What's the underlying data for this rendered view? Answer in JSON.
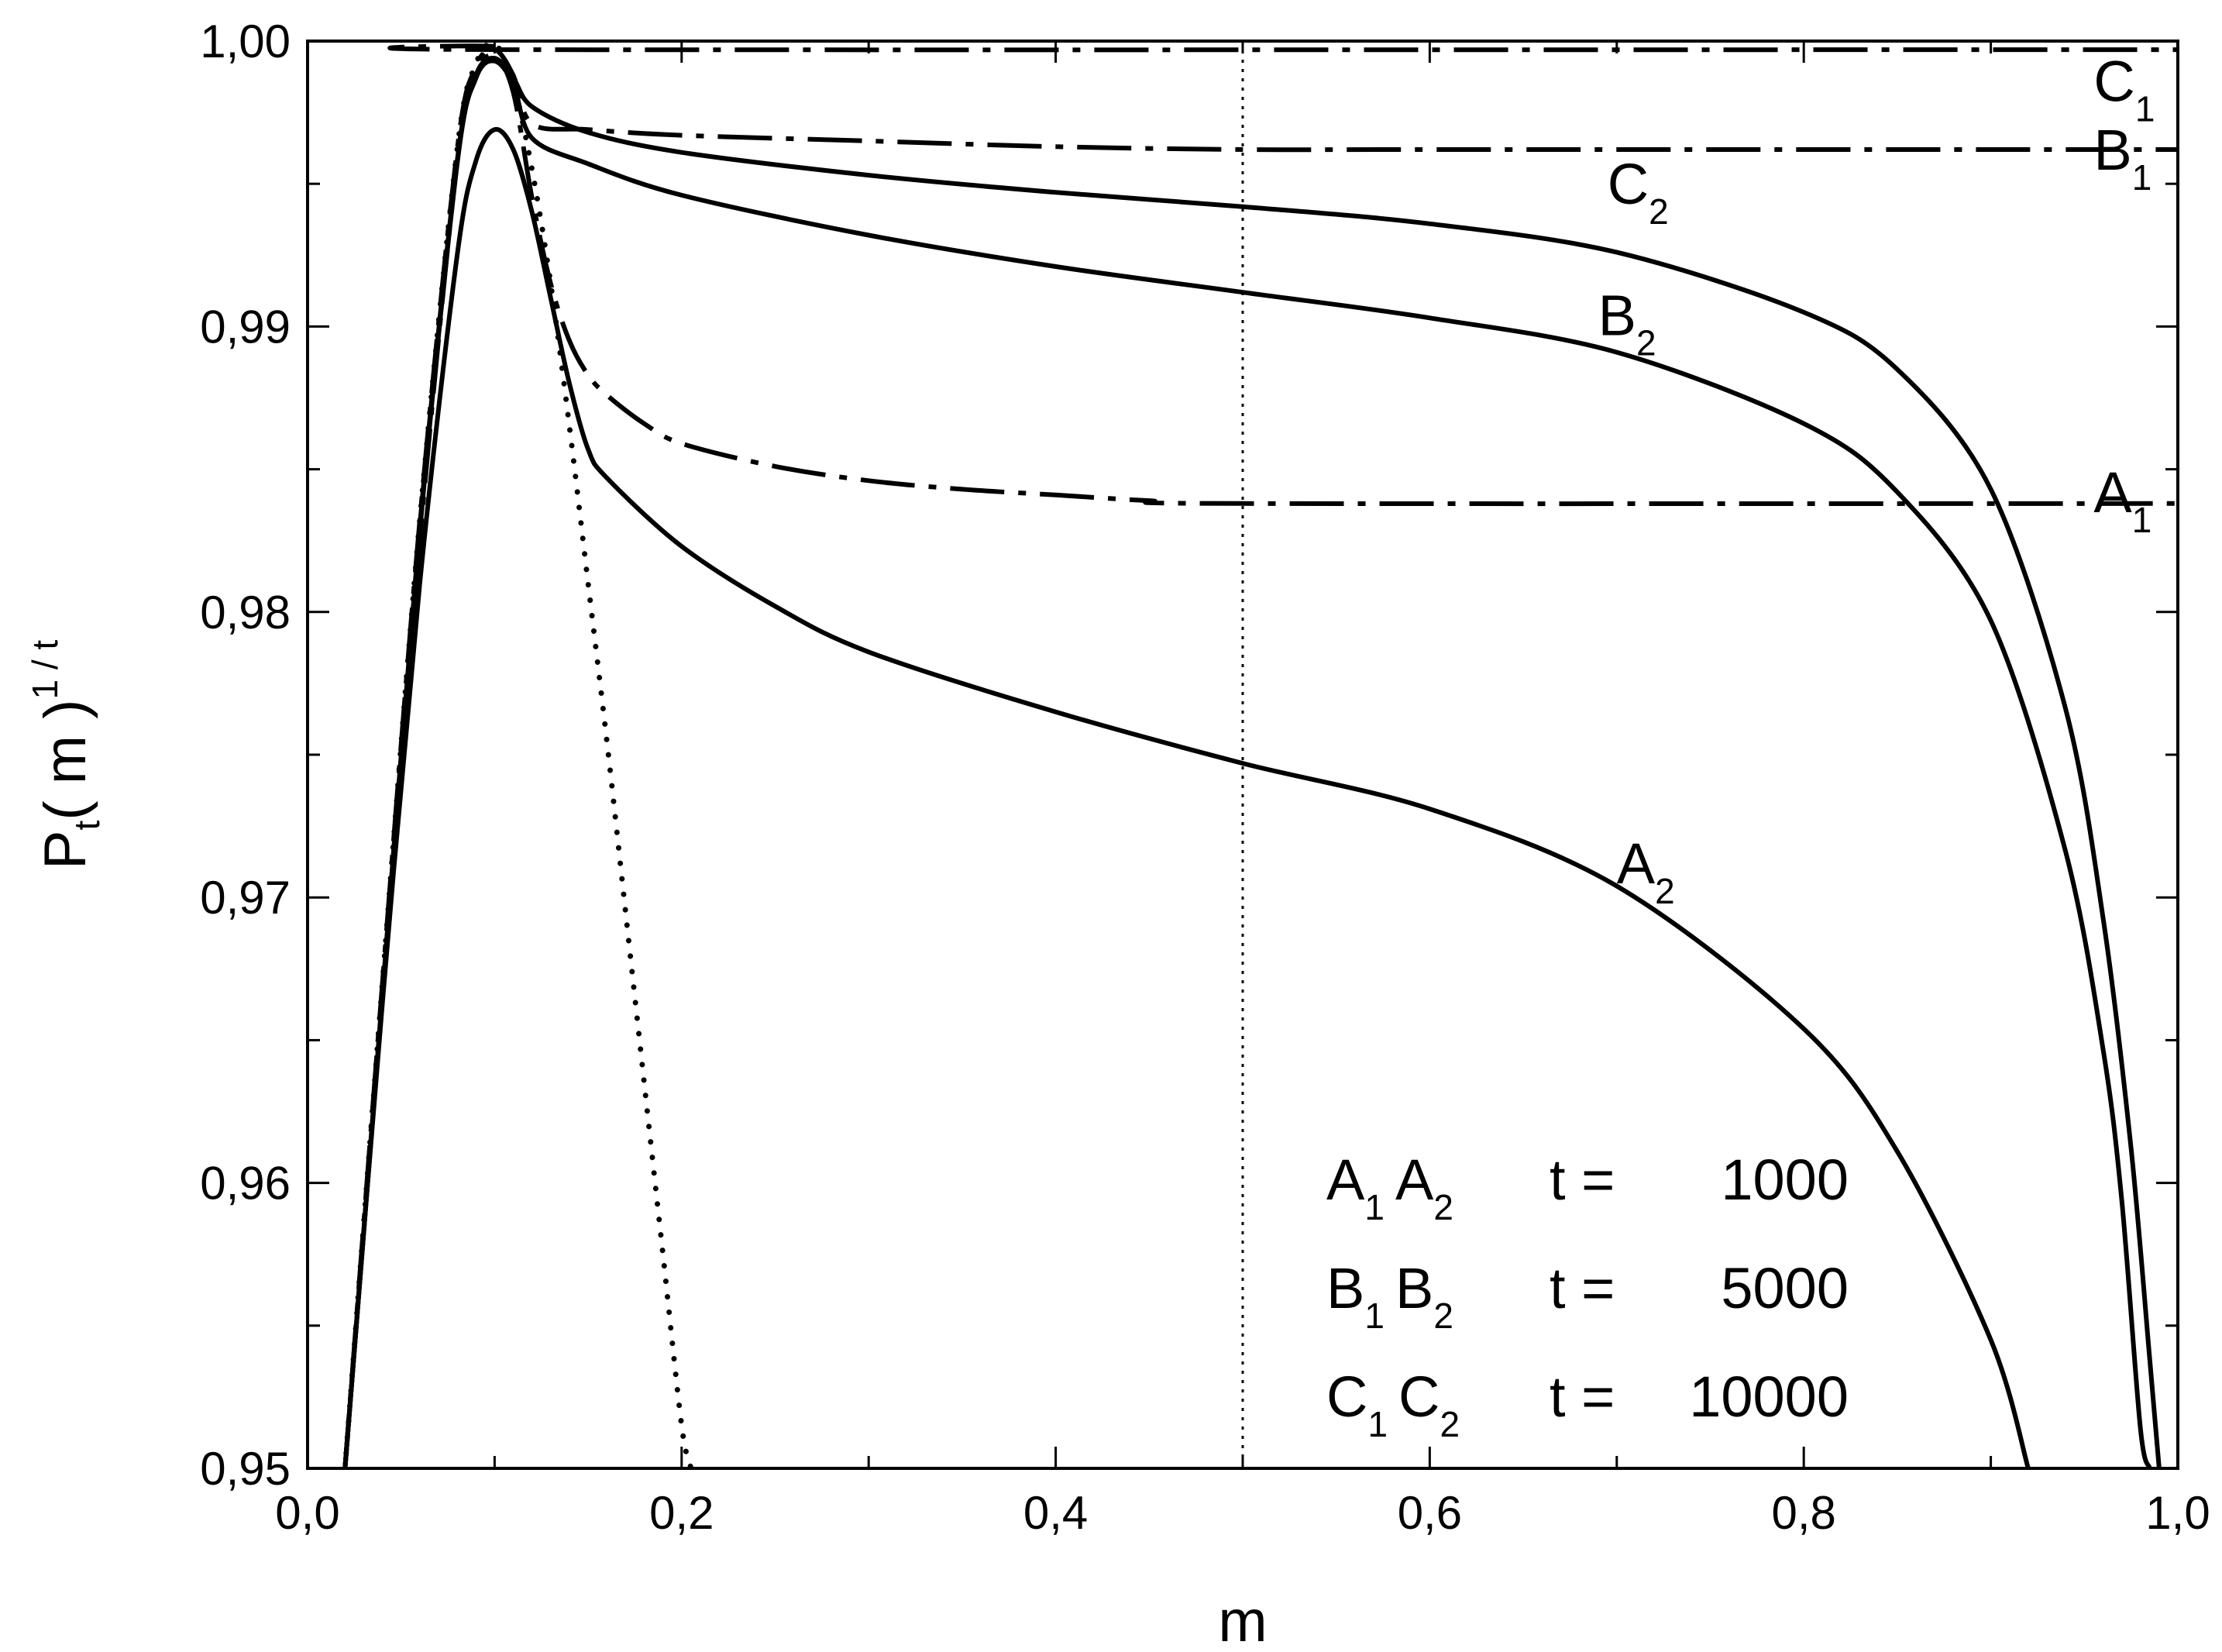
{
  "chart_data": {
    "type": "line",
    "xlabel": "m",
    "ylabel": {
      "base": "P",
      "sub": "t",
      "mid": "( m )",
      "sup": "1 / t"
    },
    "xlim": [
      0.0,
      1.0
    ],
    "ylim": [
      0.95,
      1.0
    ],
    "x_ticks": [
      0.0,
      0.2,
      0.4,
      0.6,
      0.8,
      1.0
    ],
    "x_tick_labels": [
      "0,0",
      "0,2",
      "0,4",
      "0,6",
      "0,8",
      "1,0"
    ],
    "y_ticks": [
      0.95,
      0.96,
      0.97,
      0.98,
      0.99,
      1.0
    ],
    "y_tick_labels": [
      "0,95",
      "0,96",
      "0,97",
      "0,98",
      "0,99",
      "1,00"
    ],
    "x_minor_step": 0.1,
    "y_minor_step": 0.005,
    "grid": false,
    "reference_lines": [
      {
        "orientation": "vertical",
        "x": 0.5,
        "style": "dotted"
      }
    ],
    "series": [
      {
        "name": "A1",
        "label_main": "A",
        "label_sub": "1",
        "style": "dashdot",
        "label_x": 0.955,
        "label_y": 0.9835,
        "x": [
          0.02,
          0.04,
          0.06,
          0.08,
          0.09,
          0.1,
          0.11,
          0.12,
          0.13,
          0.14,
          0.15,
          0.16,
          0.18,
          0.2,
          0.25,
          0.3,
          0.35,
          0.4,
          0.45,
          0.5,
          1.0
        ],
        "y": [
          0.95,
          0.9665,
          0.9825,
          0.9958,
          0.9988,
          0.9995,
          0.9982,
          0.9945,
          0.9915,
          0.9895,
          0.9883,
          0.9876,
          0.9866,
          0.9859,
          0.9851,
          0.9846,
          0.9843,
          0.9841,
          0.9839,
          0.9838,
          0.9838
        ]
      },
      {
        "name": "A2",
        "label_main": "A",
        "label_sub": "2",
        "style": "solid",
        "label_x": 0.7,
        "label_y": 0.9705,
        "x": [
          0.02,
          0.04,
          0.06,
          0.08,
          0.09,
          0.1,
          0.11,
          0.12,
          0.13,
          0.14,
          0.15,
          0.16,
          0.2,
          0.25,
          0.3,
          0.4,
          0.5,
          0.6,
          0.7,
          0.8,
          0.85,
          0.9,
          0.92
        ],
        "y": [
          0.95,
          0.9663,
          0.981,
          0.9925,
          0.9958,
          0.9969,
          0.9962,
          0.994,
          0.991,
          0.988,
          0.9857,
          0.9847,
          0.9823,
          0.9802,
          0.9786,
          0.9765,
          0.9747,
          0.9731,
          0.9704,
          0.9654,
          0.9611,
          0.9545,
          0.95
        ]
      },
      {
        "name": "B1",
        "label_main": "B",
        "label_sub": "1",
        "style": "dashdot",
        "label_x": 0.955,
        "label_y": 0.9955,
        "x": [
          0.02,
          0.04,
          0.06,
          0.08,
          0.09,
          0.1,
          0.11,
          0.12,
          0.15,
          0.2,
          0.3,
          0.4,
          0.5,
          0.6,
          1.0
        ],
        "y": [
          0.95,
          0.9668,
          0.983,
          0.996,
          0.999,
          0.9997,
          0.9988,
          0.9971,
          0.9969,
          0.9967,
          0.9965,
          0.9963,
          0.9962,
          0.9962,
          0.9962
        ]
      },
      {
        "name": "B2",
        "label_main": "B",
        "label_sub": "2",
        "style": "solid",
        "label_x": 0.69,
        "label_y": 0.9897,
        "x": [
          0.02,
          0.04,
          0.06,
          0.08,
          0.09,
          0.1,
          0.11,
          0.12,
          0.15,
          0.2,
          0.3,
          0.4,
          0.5,
          0.6,
          0.7,
          0.8,
          0.85,
          0.9,
          0.94,
          0.96,
          0.97,
          0.98,
          0.985
        ],
        "y": [
          0.95,
          0.9665,
          0.9828,
          0.9957,
          0.9987,
          0.9993,
          0.9985,
          0.9966,
          0.9957,
          0.9946,
          0.9932,
          0.9921,
          0.9912,
          0.9903,
          0.9891,
          0.9866,
          0.9842,
          0.9797,
          0.9716,
          0.9647,
          0.9594,
          0.9514,
          0.95
        ]
      },
      {
        "name": "C1",
        "label_main": "C",
        "label_sub": "1",
        "style": "dashdot",
        "label_x": 0.955,
        "label_y": 0.9979,
        "x": [
          0.02,
          0.04,
          0.06,
          0.08,
          0.09,
          0.1,
          0.11,
          1.0
        ],
        "y": [
          0.95,
          0.967,
          0.9832,
          0.9962,
          0.9991,
          0.9998,
          0.9997,
          0.9997
        ]
      },
      {
        "name": "C2",
        "label_main": "C",
        "label_sub": "2",
        "style": "solid",
        "label_x": 0.695,
        "label_y": 0.9943,
        "x": [
          0.02,
          0.04,
          0.06,
          0.08,
          0.09,
          0.1,
          0.11,
          0.12,
          0.15,
          0.2,
          0.3,
          0.4,
          0.5,
          0.6,
          0.7,
          0.8,
          0.85,
          0.9,
          0.94,
          0.96,
          0.975,
          0.985,
          0.99
        ],
        "y": [
          0.95,
          0.9666,
          0.983,
          0.9958,
          0.9988,
          0.9994,
          0.9987,
          0.9977,
          0.9968,
          0.9961,
          0.9953,
          0.9947,
          0.9942,
          0.9936,
          0.9926,
          0.9905,
          0.9885,
          0.9843,
          0.9766,
          0.9693,
          0.9612,
          0.9538,
          0.95
        ]
      },
      {
        "name": "",
        "style": "dotted",
        "x": [
          0.02,
          0.04,
          0.06,
          0.08,
          0.09,
          0.1,
          0.11,
          0.12,
          0.13,
          0.14,
          0.15,
          0.16,
          0.17,
          0.18,
          0.19,
          0.2,
          0.205
        ],
        "y": [
          0.95,
          0.967,
          0.9832,
          0.9962,
          0.9992,
          0.9999,
          0.9985,
          0.9955,
          0.9915,
          0.9865,
          0.981,
          0.9755,
          0.9695,
          0.9635,
          0.9575,
          0.9515,
          0.95
        ]
      }
    ],
    "legend_rows": [
      {
        "a": "A",
        "a_sub": "1",
        "b": "A",
        "b_sub": "2",
        "eq": "t =",
        "value": "1000"
      },
      {
        "a": "B",
        "a_sub": "1",
        "b": "B",
        "b_sub": "2",
        "eq": "t =",
        "value": "5000"
      },
      {
        "a": "C",
        "a_sub": "1",
        "b": "C",
        "b_sub": "2",
        "eq": "t =",
        "value": "10000"
      }
    ]
  }
}
